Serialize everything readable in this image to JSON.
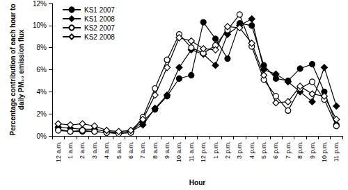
{
  "chart_data": {
    "type": "line",
    "xlabel": "Hour",
    "ylabel": "Percentage contribution of each hour to\ndaily PM₁₀ emission flux",
    "categories": [
      "12 a.m.",
      "1 a.m.",
      "2 a.m.",
      "3 a.m.",
      "4 a.m.",
      "5 a.m.",
      "6 a.m.",
      "7 a.m.",
      "8 a.m.",
      "9 a.m.",
      "10 a.m.",
      "11 a.m.",
      "12 p.m.",
      "1 p.m.",
      "2 p.m.",
      "3 p.m.",
      "4 p.m.",
      "5 p.m.",
      "6 p.m.",
      "7 p.m.",
      "8 p.m.",
      "9 p.m.",
      "10 p.m.",
      "11 p.m."
    ],
    "series": [
      {
        "name": "KS1 2007",
        "color": "#000000",
        "marker": "circle",
        "values": [
          0.6,
          0.4,
          0.4,
          0.4,
          0.3,
          0.3,
          0.4,
          1.3,
          2.4,
          3.6,
          5.2,
          5.5,
          10.3,
          8.8,
          7.0,
          10.2,
          10.0,
          6.4,
          5.2,
          5.0,
          6.1,
          6.5,
          4.0,
          1.0
        ]
      },
      {
        "name": "KS1 2008",
        "color": "#000000",
        "marker": "diamond",
        "values": [
          0.8,
          0.7,
          0.6,
          0.6,
          0.4,
          0.3,
          0.4,
          1.0,
          2.5,
          3.7,
          6.2,
          7.8,
          7.4,
          6.4,
          9.2,
          10.0,
          10.6,
          6.0,
          5.6,
          4.9,
          4.0,
          3.1,
          6.2,
          2.7
        ]
      },
      {
        "name": "KS2 2007",
        "color": "#000000",
        "marker": "open_circle",
        "values": [
          0.5,
          0.4,
          0.5,
          0.4,
          0.3,
          0.2,
          0.3,
          1.7,
          4.3,
          6.9,
          9.2,
          8.0,
          7.5,
          8.2,
          9.6,
          11.0,
          8.1,
          5.1,
          3.6,
          2.3,
          4.3,
          4.9,
          3.3,
          0.9
        ]
      },
      {
        "name": "KS2 2008",
        "color": "#000000",
        "marker": "open_diamond",
        "values": [
          1.1,
          1.0,
          1.1,
          0.9,
          0.5,
          0.4,
          0.5,
          1.5,
          3.7,
          6.2,
          8.9,
          8.6,
          7.9,
          7.8,
          9.9,
          9.8,
          8.4,
          5.5,
          3.0,
          3.1,
          4.5,
          3.8,
          3.6,
          1.5
        ]
      }
    ],
    "ylim": [
      0,
      12
    ],
    "yticks": [
      {
        "value": 0,
        "label": "0%"
      },
      {
        "value": 2,
        "label": "2%"
      },
      {
        "value": 4,
        "label": "4%"
      },
      {
        "value": 6,
        "label": "6%"
      },
      {
        "value": 8,
        "label": "8%"
      },
      {
        "value": 10,
        "label": "10%"
      },
      {
        "value": 12,
        "label": "12%"
      }
    ],
    "grid": false,
    "legend": "upper left"
  }
}
